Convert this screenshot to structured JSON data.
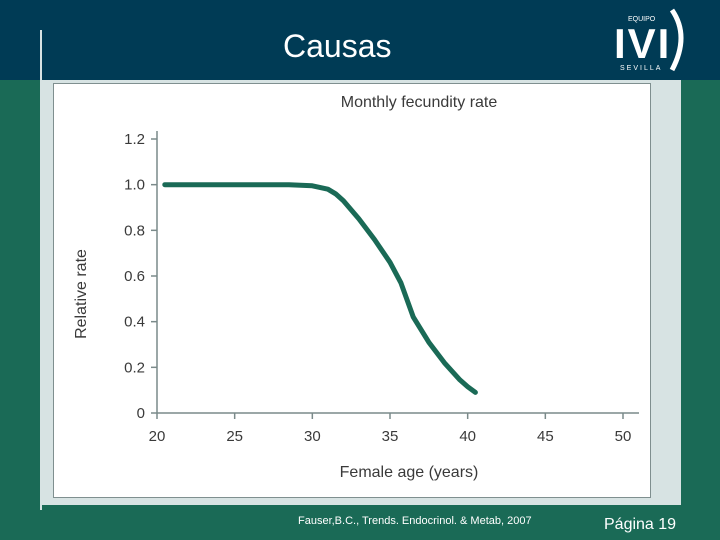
{
  "slide": {
    "title": "Causas",
    "logo": {
      "top_text": "EQUIPO",
      "main_text": "IVI",
      "bottom_text": "SEVILLA"
    },
    "citation": "Fauser,B.C., Trends. Endocrinol. & Metab, 2007",
    "page_label": "Página 19"
  },
  "colors": {
    "header_bg": "#003b55",
    "page_bg": "#1a6a56",
    "panel_bg": "#d7e3e3",
    "line": "#1a6a56"
  },
  "chart_data": {
    "type": "line",
    "title": "Monthly fecundity rate",
    "xlabel": "Female age (years)",
    "ylabel": "Relative rate",
    "xlim": [
      20,
      50
    ],
    "ylim": [
      0,
      1.2
    ],
    "xticks": [
      20,
      25,
      30,
      35,
      40,
      45,
      50
    ],
    "yticks": [
      {
        "value": 0,
        "label": "0"
      },
      {
        "value": 0.2,
        "label": "0.2"
      },
      {
        "value": 0.4,
        "label": "0.4"
      },
      {
        "value": 0.6,
        "label": "0.6"
      },
      {
        "value": 0.8,
        "label": "0.8"
      },
      {
        "value": 1.0,
        "label": "1.0"
      },
      {
        "value": 1.2,
        "label": "1.2"
      }
    ],
    "grid": false,
    "series": [
      {
        "x": [
          20.5,
          25,
          28.5,
          30,
          31,
          31.5,
          32,
          33,
          34,
          35,
          35.7,
          36.5,
          37.5,
          38.5,
          39.5,
          40,
          40.5
        ],
        "y": [
          1.0,
          1.0,
          1.0,
          0.995,
          0.98,
          0.96,
          0.93,
          0.85,
          0.76,
          0.66,
          0.57,
          0.42,
          0.31,
          0.22,
          0.145,
          0.115,
          0.09
        ]
      }
    ]
  }
}
